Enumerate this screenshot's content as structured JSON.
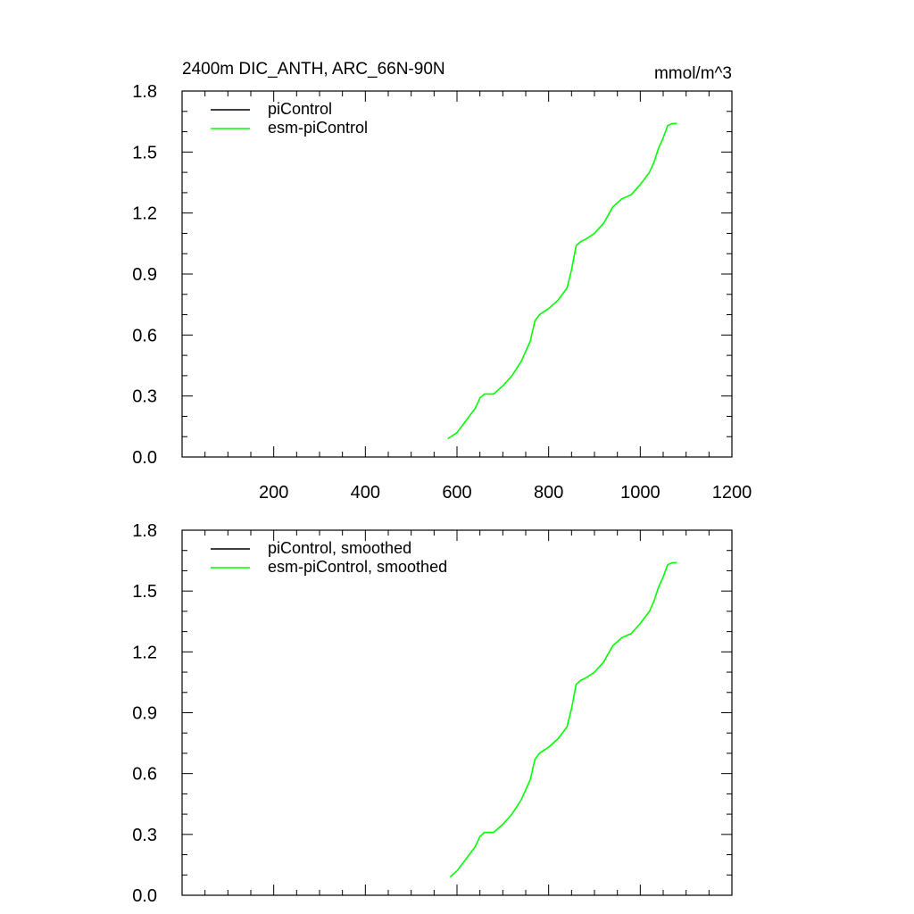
{
  "header": {
    "title": "2400m DIC_ANTH, ARC_66N-90N",
    "units": "mmol/m^3"
  },
  "colors": {
    "piControl": "#000000",
    "esm_piControl": "#00ff00",
    "axis": "#000000"
  },
  "chart_data": [
    {
      "type": "line",
      "title": "2400m DIC_ANTH, ARC_66N-90N",
      "units": "mmol/m^3",
      "xlim": [
        0,
        1200
      ],
      "ylim": [
        0.0,
        1.8
      ],
      "xticks": [
        200,
        400,
        600,
        800,
        1000,
        1200
      ],
      "xtick_labels": [
        "200",
        "400",
        "600",
        "800",
        "1000",
        "1200"
      ],
      "yticks": [
        0.0,
        0.3,
        0.6,
        0.9,
        1.2,
        1.5,
        1.8
      ],
      "ytick_labels": [
        "0.0",
        "0.3",
        "0.6",
        "0.9",
        "1.2",
        "1.5",
        "1.8"
      ],
      "grid": false,
      "legend_position": "top-left",
      "series": [
        {
          "name": "piControl",
          "color": "#000000",
          "x": [],
          "y": []
        },
        {
          "name": "esm-piControl",
          "color": "#00ff00",
          "x": [
            580,
            600,
            620,
            640,
            650,
            660,
            680,
            700,
            720,
            740,
            760,
            770,
            780,
            800,
            820,
            840,
            850,
            860,
            870,
            880,
            900,
            920,
            940,
            960,
            980,
            1000,
            1020,
            1030,
            1040,
            1050,
            1060,
            1070,
            1080
          ],
          "y": [
            0.09,
            0.12,
            0.18,
            0.24,
            0.29,
            0.31,
            0.31,
            0.35,
            0.4,
            0.47,
            0.57,
            0.67,
            0.7,
            0.73,
            0.77,
            0.83,
            0.92,
            1.04,
            1.06,
            1.07,
            1.1,
            1.15,
            1.23,
            1.27,
            1.29,
            1.34,
            1.4,
            1.45,
            1.52,
            1.57,
            1.63,
            1.64,
            1.64
          ]
        }
      ]
    },
    {
      "type": "line",
      "xlim": [
        0,
        1200
      ],
      "ylim": [
        0.0,
        1.8
      ],
      "xticks": [
        200,
        400,
        600,
        800,
        1000,
        1200
      ],
      "yticks": [
        0.0,
        0.3,
        0.6,
        0.9,
        1.2,
        1.5,
        1.8
      ],
      "ytick_labels": [
        "0.0",
        "0.3",
        "0.6",
        "0.9",
        "1.2",
        "1.5",
        "1.8"
      ],
      "grid": false,
      "legend_position": "top-left",
      "series": [
        {
          "name": "piControl, smoothed",
          "color": "#000000",
          "x": [],
          "y": []
        },
        {
          "name": "esm-piControl, smoothed",
          "color": "#00ff00",
          "x": [
            585,
            600,
            620,
            640,
            650,
            660,
            680,
            700,
            720,
            740,
            760,
            770,
            780,
            800,
            820,
            840,
            850,
            860,
            870,
            880,
            900,
            920,
            940,
            960,
            980,
            1000,
            1020,
            1030,
            1040,
            1050,
            1060,
            1070,
            1080
          ],
          "y": [
            0.09,
            0.12,
            0.18,
            0.24,
            0.29,
            0.31,
            0.31,
            0.35,
            0.4,
            0.47,
            0.57,
            0.67,
            0.7,
            0.73,
            0.77,
            0.83,
            0.92,
            1.04,
            1.06,
            1.07,
            1.1,
            1.15,
            1.23,
            1.27,
            1.29,
            1.34,
            1.4,
            1.45,
            1.52,
            1.57,
            1.63,
            1.64,
            1.64
          ]
        }
      ]
    }
  ]
}
